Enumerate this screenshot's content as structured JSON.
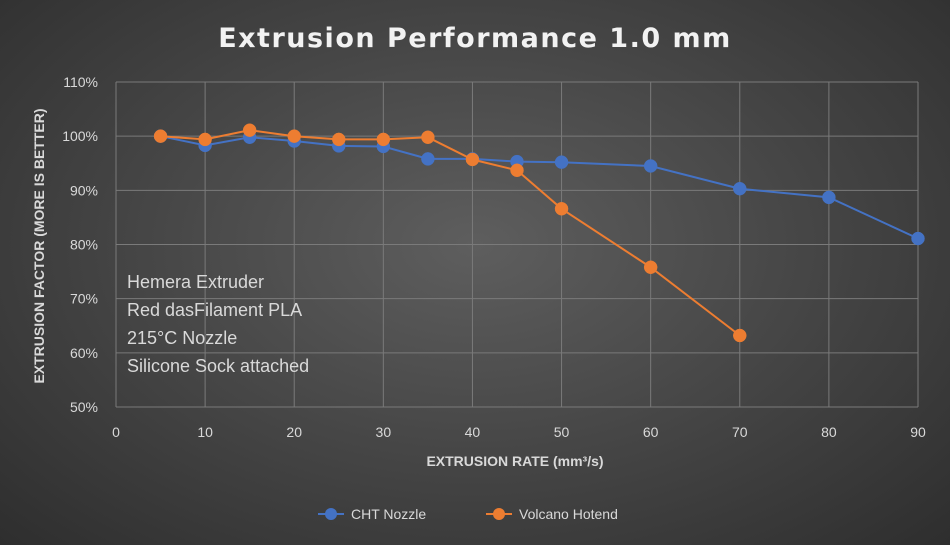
{
  "chart_data": {
    "type": "line",
    "title": "Extrusion Performance 1.0 mm",
    "xlabel": "EXTRUSION RATE (mm³/s)",
    "ylabel": "EXTRUSION FACTOR (MORE IS BETTER)",
    "xlim": [
      0,
      90
    ],
    "ylim": [
      50,
      110
    ],
    "x_ticks": [
      0,
      10,
      20,
      30,
      40,
      50,
      60,
      70,
      80,
      90
    ],
    "y_ticks": [
      50,
      60,
      70,
      80,
      90,
      100,
      110
    ],
    "y_tick_labels": [
      "50%",
      "60%",
      "70%",
      "80%",
      "90%",
      "100%",
      "110%"
    ],
    "grid": true,
    "legend_position": "bottom",
    "annotations": [
      "Hemera Extruder",
      "Red dasFilament PLA",
      "215°C Nozzle",
      "Silicone Sock attached"
    ],
    "series": [
      {
        "name": "CHT Nozzle",
        "color": "#4472c4",
        "x": [
          5,
          10,
          15,
          20,
          25,
          30,
          35,
          40,
          45,
          50,
          60,
          70,
          80,
          90
        ],
        "y": [
          100,
          98.3,
          99.8,
          99.1,
          98.2,
          98.1,
          95.8,
          95.8,
          95.3,
          95.2,
          94.5,
          90.3,
          88.7,
          81.1
        ]
      },
      {
        "name": "Volcano Hotend",
        "color": "#ed7d31",
        "x": [
          5,
          10,
          15,
          20,
          25,
          30,
          35,
          40,
          45,
          50,
          60,
          70
        ],
        "y": [
          100,
          99.4,
          101.1,
          100,
          99.4,
          99.4,
          99.8,
          95.7,
          93.7,
          86.6,
          75.8,
          63.2
        ]
      }
    ]
  }
}
